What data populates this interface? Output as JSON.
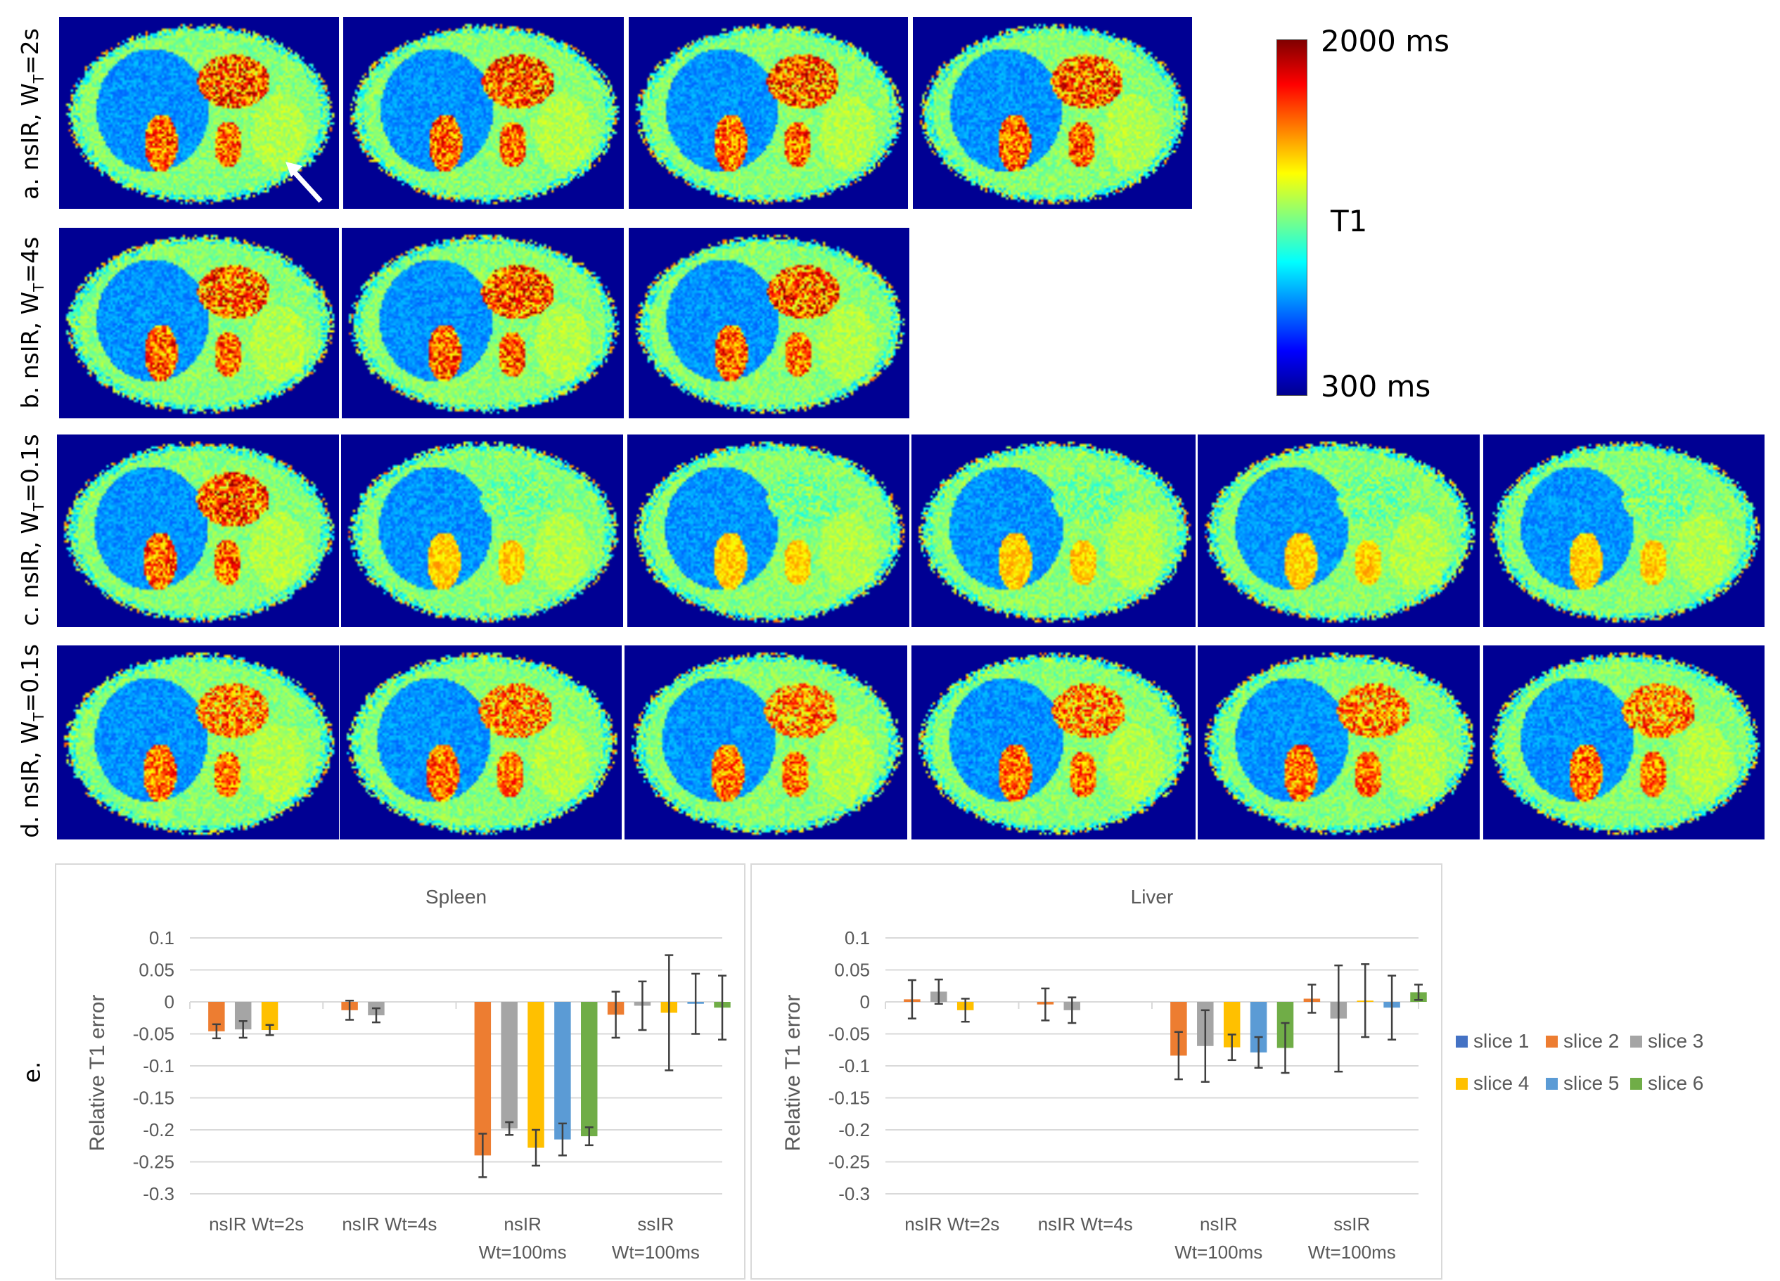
{
  "rows": [
    {
      "prefix": "a. nsIR, W",
      "sub": "T",
      "suffix": "=2s",
      "count": 4
    },
    {
      "prefix": "b. nsIR, W",
      "sub": "T",
      "suffix": "=4s",
      "count": 3
    },
    {
      "prefix": "c. nsIR, W",
      "sub": "T",
      "suffix": "=0.1s",
      "count": 6
    },
    {
      "prefix": "d. nsIR, W",
      "sub": "T",
      "suffix": "=0.1s",
      "count": 6
    }
  ],
  "colorbar": {
    "max_label": "2000 ms",
    "mid_label": "T1",
    "min_label": "300 ms",
    "colormap": "jet"
  },
  "panel_e_label": "e.",
  "legend": [
    "slice 1",
    "slice 2",
    "slice 3",
    "slice 4",
    "slice 5",
    "slice 6"
  ],
  "series_colors": [
    "#4472C4",
    "#ED7D31",
    "#A5A5A5",
    "#FFC000",
    "#5B9BD5",
    "#70AD47"
  ],
  "chart_data": [
    {
      "type": "bar",
      "title": "Spleen",
      "ylabel": "Relative T1 error",
      "xlabel": "",
      "ylim": [
        -0.3,
        0.1
      ],
      "yticks": [
        "0.1",
        "0.05",
        "0",
        "-0.05",
        "-0.1",
        "-0.15",
        "-0.2",
        "-0.25",
        "-0.3"
      ],
      "grid": true,
      "legend_position": "right",
      "categories": [
        [
          "nsIR Wt=2s"
        ],
        [
          "nsIR Wt=4s"
        ],
        [
          "nsIR",
          "Wt=100ms"
        ],
        [
          "ssIR",
          "Wt=100ms"
        ]
      ],
      "series": [
        {
          "name": "slice 1",
          "values": [
            null,
            null,
            null,
            null
          ],
          "errors": [
            null,
            null,
            null,
            null
          ]
        },
        {
          "name": "slice 2",
          "values": [
            -0.046,
            -0.013,
            -0.24,
            -0.02
          ],
          "errors": [
            0.011,
            0.015,
            0.034,
            0.036
          ]
        },
        {
          "name": "slice 3",
          "values": [
            -0.043,
            -0.021,
            -0.198,
            -0.006
          ],
          "errors": [
            0.013,
            0.011,
            0.01,
            0.038
          ]
        },
        {
          "name": "slice 4",
          "values": [
            -0.044,
            null,
            -0.228,
            -0.017
          ],
          "errors": [
            0.008,
            null,
            0.028,
            0.09
          ]
        },
        {
          "name": "slice 5",
          "values": [
            null,
            null,
            -0.215,
            -0.003
          ],
          "errors": [
            null,
            null,
            0.025,
            0.047
          ]
        },
        {
          "name": "slice 6",
          "values": [
            null,
            null,
            -0.21,
            -0.009
          ],
          "errors": [
            null,
            null,
            0.014,
            0.05
          ]
        }
      ]
    },
    {
      "type": "bar",
      "title": "Liver",
      "ylabel": "Relative T1 error",
      "xlabel": "",
      "ylim": [
        -0.3,
        0.1
      ],
      "yticks": [
        "0.1",
        "0.05",
        "0",
        "-0.05",
        "-0.1",
        "-0.15",
        "-0.2",
        "-0.25",
        "-0.3"
      ],
      "grid": true,
      "legend_position": "right",
      "categories": [
        [
          "nsIR Wt=2s"
        ],
        [
          "nsIR Wt=4s"
        ],
        [
          "nsIR",
          "Wt=100ms"
        ],
        [
          "ssIR",
          "Wt=100ms"
        ]
      ],
      "series": [
        {
          "name": "slice 1",
          "values": [
            null,
            null,
            null,
            null
          ],
          "errors": [
            null,
            null,
            null,
            null
          ]
        },
        {
          "name": "slice 2",
          "values": [
            0.004,
            -0.004,
            -0.084,
            0.005
          ],
          "errors": [
            0.03,
            0.025,
            0.037,
            0.022
          ]
        },
        {
          "name": "slice 3",
          "values": [
            0.016,
            -0.013,
            -0.069,
            -0.026
          ],
          "errors": [
            0.019,
            0.02,
            0.056,
            0.083
          ]
        },
        {
          "name": "slice 4",
          "values": [
            -0.013,
            null,
            -0.071,
            0.002
          ],
          "errors": [
            0.018,
            null,
            0.02,
            0.057
          ]
        },
        {
          "name": "slice 5",
          "values": [
            null,
            null,
            -0.079,
            -0.009
          ],
          "errors": [
            null,
            null,
            0.024,
            0.05
          ]
        },
        {
          "name": "slice 6",
          "values": [
            null,
            null,
            -0.072,
            0.015
          ],
          "errors": [
            null,
            null,
            0.039,
            0.012
          ]
        }
      ]
    }
  ]
}
